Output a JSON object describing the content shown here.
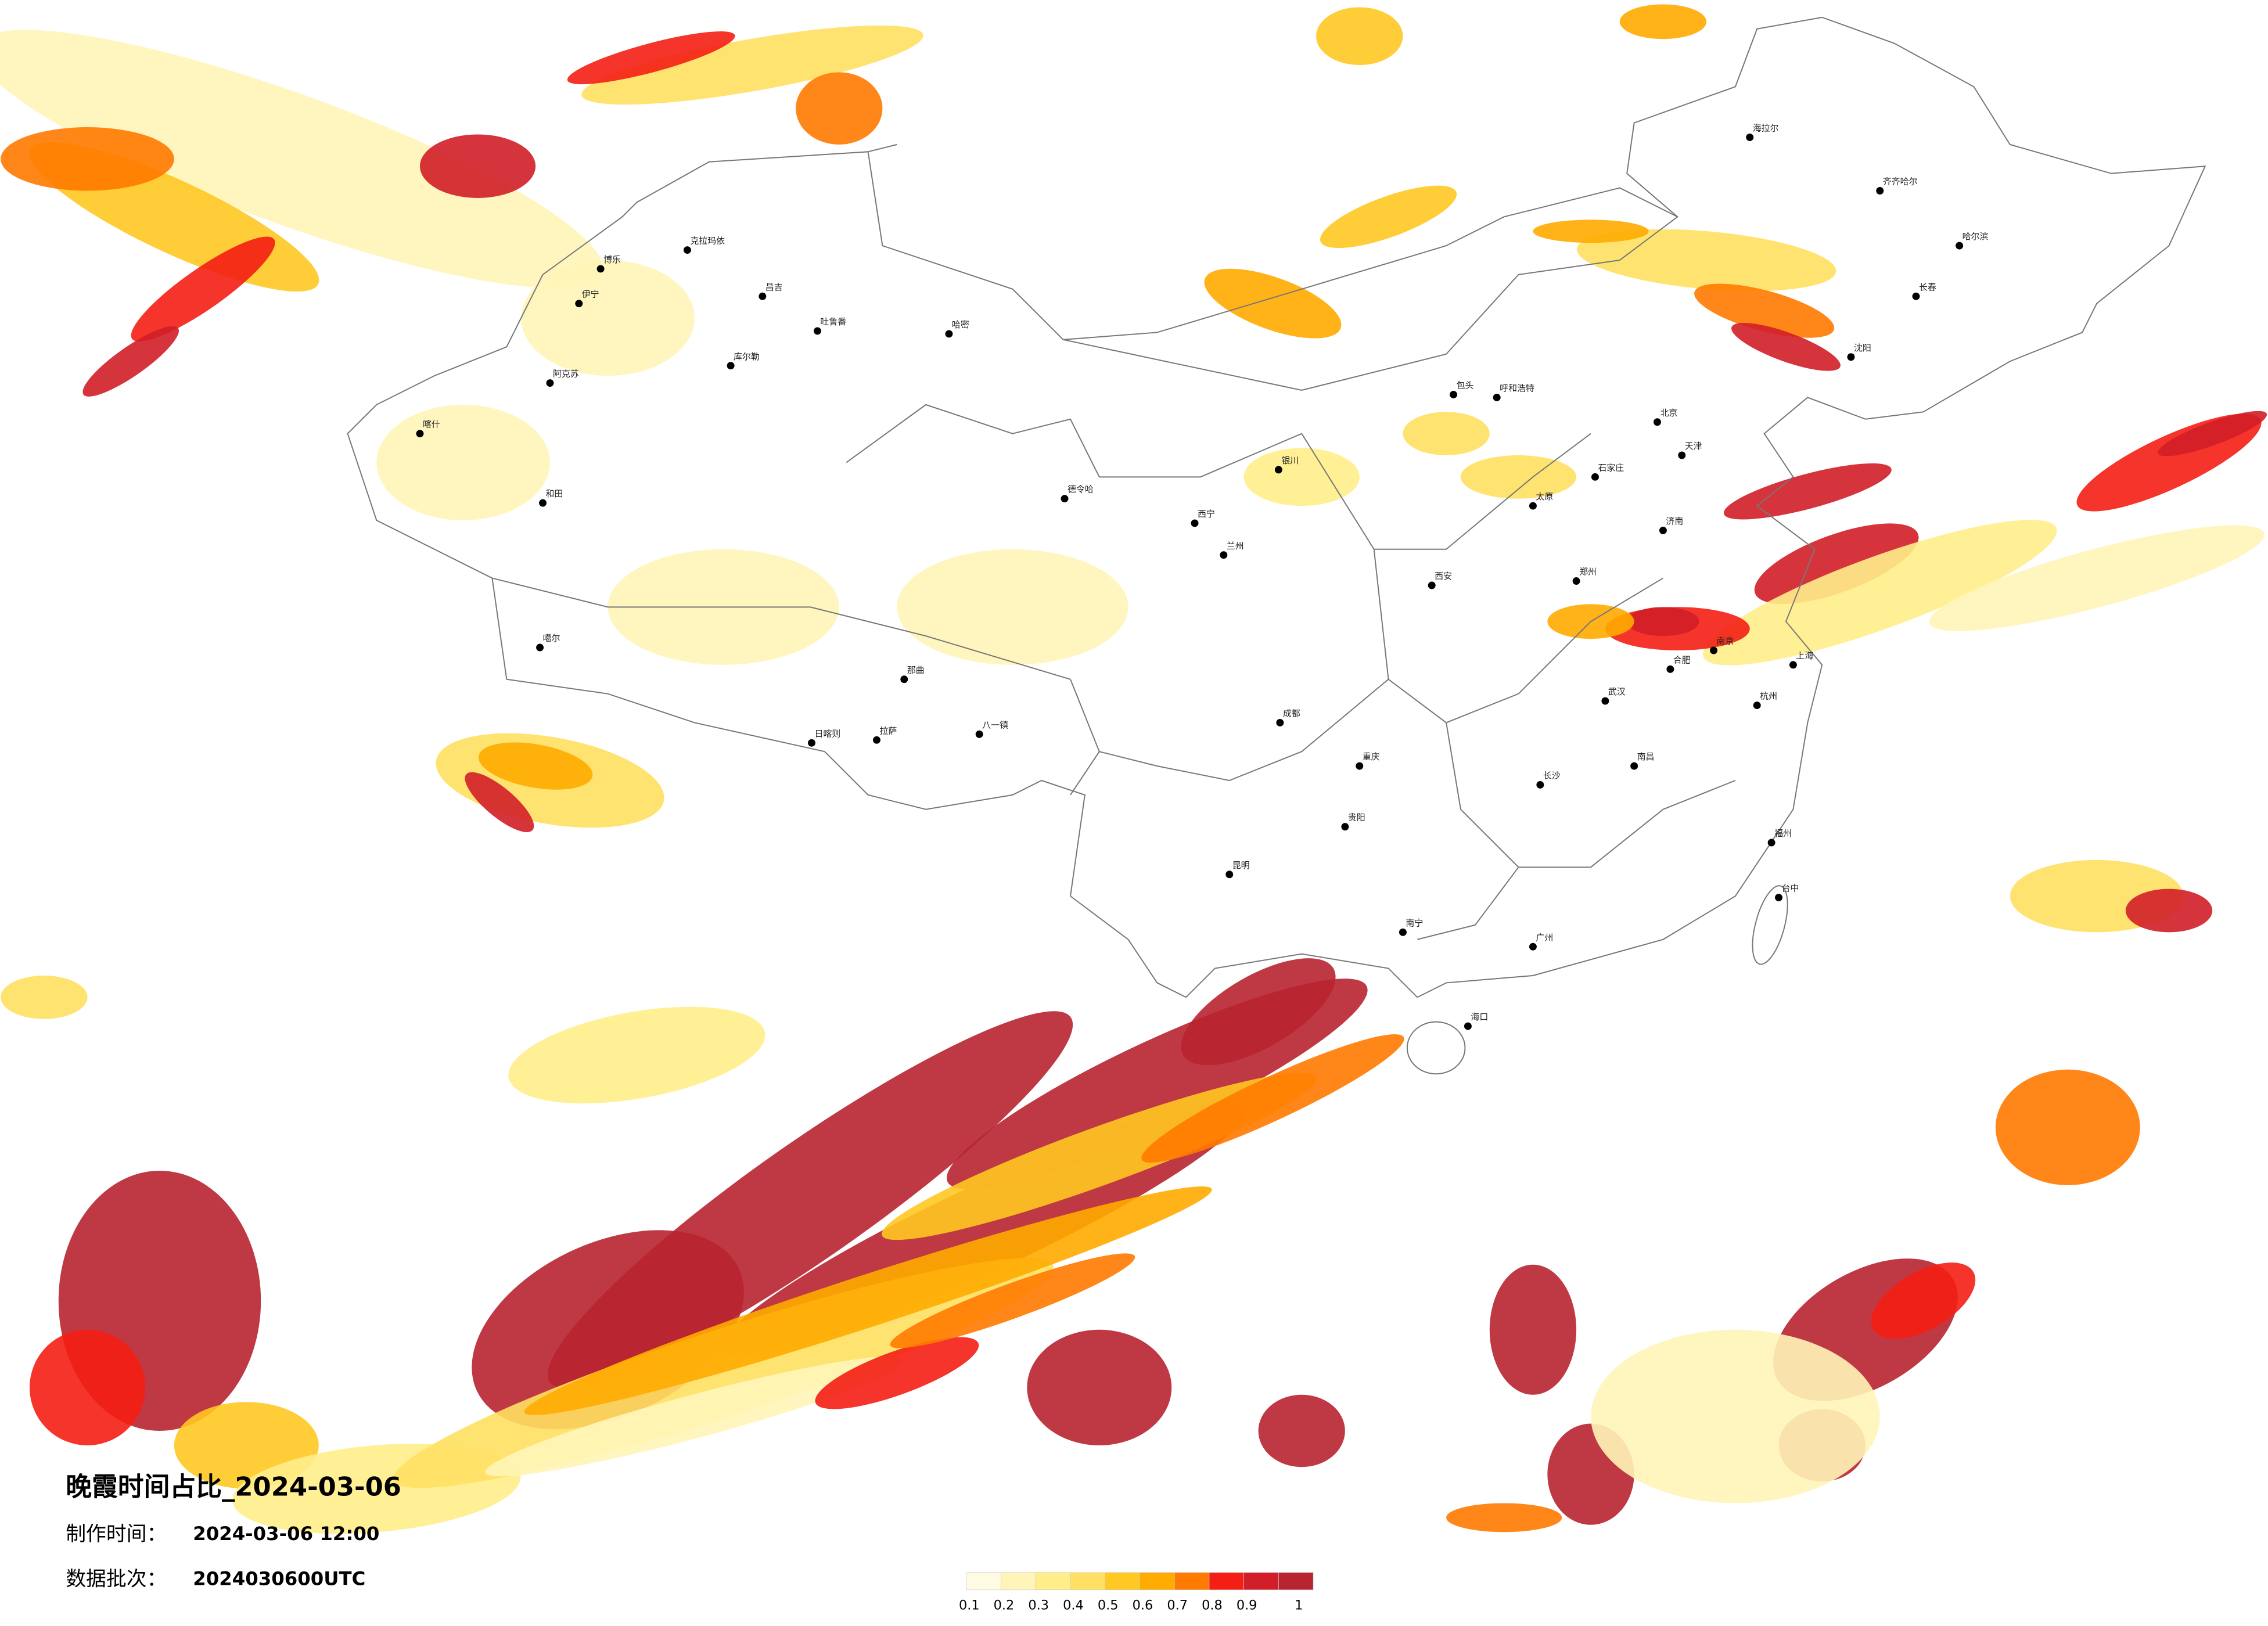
{
  "title": "晚霞时间占比_2024-03-06",
  "produced_label": "制作时间：",
  "produced_time": "2024-03-06 12:00",
  "batch_label": "数据批次：",
  "batch": "2024030600UTC",
  "legend": {
    "ticks": [
      0.1,
      0.2,
      0.3,
      0.4,
      0.5,
      0.6,
      0.7,
      0.8,
      0.9,
      1
    ],
    "colors": [
      "#fffbe3",
      "#fff5b8",
      "#ffee8a",
      "#ffe062",
      "#ffc822",
      "#ffab00",
      "#ff7a00",
      "#f41e14",
      "#d21e28",
      "#b82430"
    ]
  },
  "cities": [
    "克拉玛依",
    "昌吉",
    "吐鲁番",
    "哈密",
    "伊宁",
    "博乐",
    "阿克苏",
    "喀什",
    "和田",
    "库尔勒",
    "噶尔",
    "日喀则",
    "拉萨",
    "八一镇",
    "那曲",
    "德令哈",
    "西宁",
    "兰州",
    "银川",
    "呼和浩特",
    "包头",
    "北京",
    "天津",
    "石家庄",
    "太原",
    "济南",
    "郑州",
    "西安",
    "成都",
    "重庆",
    "贵阳",
    "昆明",
    "南宁",
    "广州",
    "长沙",
    "武汉",
    "南昌",
    "福州",
    "杭州",
    "南京",
    "上海",
    "合肥",
    "哈尔滨",
    "长春",
    "沈阳",
    "海口",
    "台中",
    "海拉尔",
    "齐齐哈尔"
  ]
}
